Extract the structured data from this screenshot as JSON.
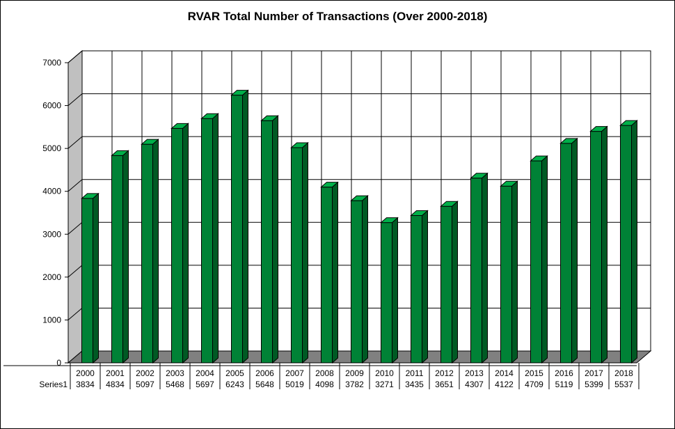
{
  "chart_data": {
    "type": "bar",
    "title": "RVAR Total Number of Transactions (Over 2000-2018)",
    "categories": [
      "2000",
      "2001",
      "2002",
      "2003",
      "2004",
      "2005",
      "2006",
      "2007",
      "2008",
      "2009",
      "2010",
      "2011",
      "2012",
      "2013",
      "2014",
      "2015",
      "2016",
      "2017",
      "2018"
    ],
    "series": [
      {
        "name": "Series1",
        "values": [
          3834,
          4834,
          5097,
          5468,
          5697,
          6243,
          5648,
          5019,
          4098,
          3782,
          3271,
          3435,
          3651,
          4307,
          4122,
          4709,
          5119,
          5399,
          5537
        ]
      }
    ],
    "ylim": [
      0,
      7000
    ],
    "yticks": [
      "0",
      "1000",
      "2000",
      "3000",
      "4000",
      "5000",
      "6000",
      "7000"
    ],
    "grid": true,
    "legend": "data-table",
    "colors": {
      "bar_front": "#008236",
      "bar_side": "#005a24",
      "bar_top": "#00b04a",
      "wall": "#c0c0c0",
      "floor": "#808080"
    }
  }
}
